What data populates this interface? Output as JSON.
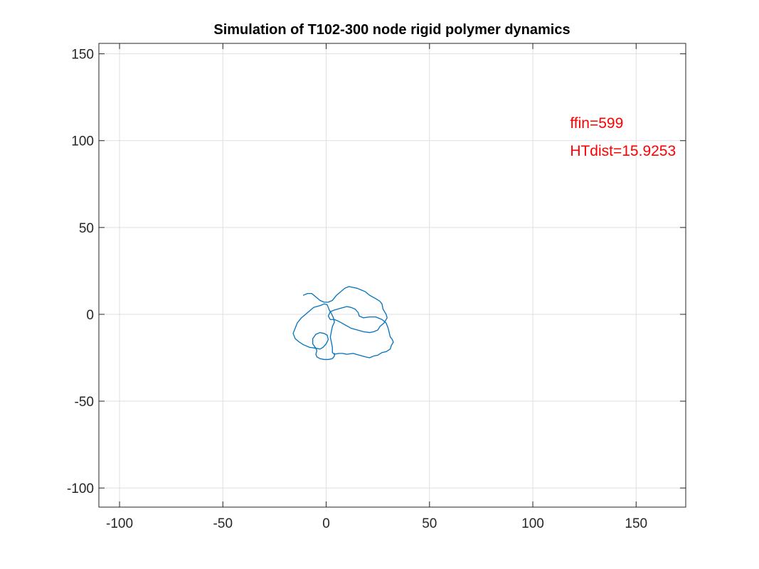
{
  "chart_data": {
    "type": "line",
    "title": "Simulation of T102-300 node rigid polymer dynamics",
    "xlabel": "",
    "ylabel": "",
    "xlim": [
      -110,
      174
    ],
    "ylim": [
      -111,
      156
    ],
    "xticks": [
      -100,
      -50,
      0,
      50,
      100,
      150
    ],
    "yticks": [
      -100,
      -50,
      0,
      50,
      100,
      150
    ],
    "xtick_labels": [
      "-100",
      "-50",
      "0",
      "50",
      "100",
      "150"
    ],
    "ytick_labels": [
      "-100",
      "-50",
      "0",
      "50",
      "100",
      "150"
    ],
    "grid": true,
    "box": true,
    "series": [
      {
        "color": "#0072BD",
        "points": [
          [
            -11,
            11
          ],
          [
            -9,
            12
          ],
          [
            -7,
            12
          ],
          [
            -5,
            10
          ],
          [
            -3,
            8
          ],
          [
            -1,
            7
          ],
          [
            1,
            7
          ],
          [
            3,
            8
          ],
          [
            5,
            11
          ],
          [
            7,
            13
          ],
          [
            9,
            15
          ],
          [
            11,
            16
          ],
          [
            13,
            15.5
          ],
          [
            15,
            15
          ],
          [
            17,
            14
          ],
          [
            19,
            13
          ],
          [
            21,
            11
          ],
          [
            22.5,
            10
          ],
          [
            24,
            9
          ],
          [
            26,
            7.5
          ],
          [
            27,
            6
          ],
          [
            27.5,
            3
          ],
          [
            29,
            0
          ],
          [
            29.5,
            -2
          ],
          [
            28,
            -5
          ],
          [
            26,
            -7
          ],
          [
            25,
            -9
          ],
          [
            23,
            -10
          ],
          [
            21,
            -10.5
          ],
          [
            18,
            -10
          ],
          [
            15,
            -9
          ],
          [
            12,
            -8
          ],
          [
            9,
            -6
          ],
          [
            6,
            -4
          ],
          [
            4,
            -3
          ],
          [
            2,
            -3
          ],
          [
            1,
            -1
          ],
          [
            2,
            1.5
          ],
          [
            4,
            2.5
          ],
          [
            7,
            3.5
          ],
          [
            10,
            4.5
          ],
          [
            12,
            4
          ],
          [
            14,
            3
          ],
          [
            15.5,
            1
          ],
          [
            16,
            -1
          ],
          [
            18,
            -2
          ],
          [
            21,
            -1.5
          ],
          [
            24,
            -1.5
          ],
          [
            27,
            -3
          ],
          [
            29,
            -5
          ],
          [
            30,
            -8
          ],
          [
            30.5,
            -10.5
          ],
          [
            31,
            -13
          ],
          [
            32,
            -14.5
          ],
          [
            32.5,
            -16
          ],
          [
            31.5,
            -18
          ],
          [
            31,
            -20
          ],
          [
            29,
            -21.5
          ],
          [
            27,
            -22
          ],
          [
            25,
            -23.5
          ],
          [
            23,
            -24
          ],
          [
            21,
            -25
          ],
          [
            19,
            -24.5
          ],
          [
            16,
            -23.5
          ],
          [
            13,
            -22.5
          ],
          [
            10,
            -23
          ],
          [
            8,
            -22.5
          ],
          [
            6,
            -22.5
          ],
          [
            4,
            -23
          ],
          [
            3,
            -22
          ],
          [
            3,
            -19
          ],
          [
            2.5,
            -16
          ],
          [
            2,
            -13
          ],
          [
            2.5,
            -10
          ],
          [
            3,
            -7
          ],
          [
            4,
            -4.5
          ],
          [
            3.5,
            -2
          ],
          [
            2.5,
            0.5
          ],
          [
            1.5,
            2.5
          ],
          [
            1,
            4
          ],
          [
            0.5,
            5.5
          ],
          [
            -1,
            6
          ],
          [
            -3,
            5
          ],
          [
            -6,
            4
          ],
          [
            -8,
            2
          ],
          [
            -10,
            0
          ],
          [
            -12,
            -2
          ],
          [
            -14,
            -5
          ],
          [
            -15,
            -8
          ],
          [
            -16,
            -11
          ],
          [
            -15,
            -14
          ],
          [
            -13,
            -16
          ],
          [
            -11,
            -17.5
          ],
          [
            -8,
            -19
          ],
          [
            -5,
            -19.5
          ],
          [
            -3,
            -20
          ],
          [
            -1.5,
            -19
          ],
          [
            0,
            -17
          ],
          [
            1,
            -14.5
          ],
          [
            0.5,
            -12
          ],
          [
            -1,
            -11
          ],
          [
            -3,
            -10.5
          ],
          [
            -5,
            -11.5
          ],
          [
            -6.5,
            -14
          ],
          [
            -6.5,
            -17
          ],
          [
            -5,
            -19.5
          ],
          [
            -4.5,
            -21
          ],
          [
            -5,
            -23
          ],
          [
            -4.5,
            -24.5
          ],
          [
            -3,
            -25.5
          ],
          [
            -1,
            -26
          ],
          [
            1,
            -26
          ],
          [
            3,
            -25.5
          ],
          [
            4,
            -24
          ],
          [
            4,
            -22.5
          ]
        ]
      }
    ],
    "annotations": [
      {
        "text": "ffin=599",
        "x": 118,
        "y": 110.5,
        "color": "#FF0000"
      },
      {
        "text": "HTdist=15.9253",
        "x": 118,
        "y": 94.5,
        "color": "#FF0000"
      }
    ]
  }
}
